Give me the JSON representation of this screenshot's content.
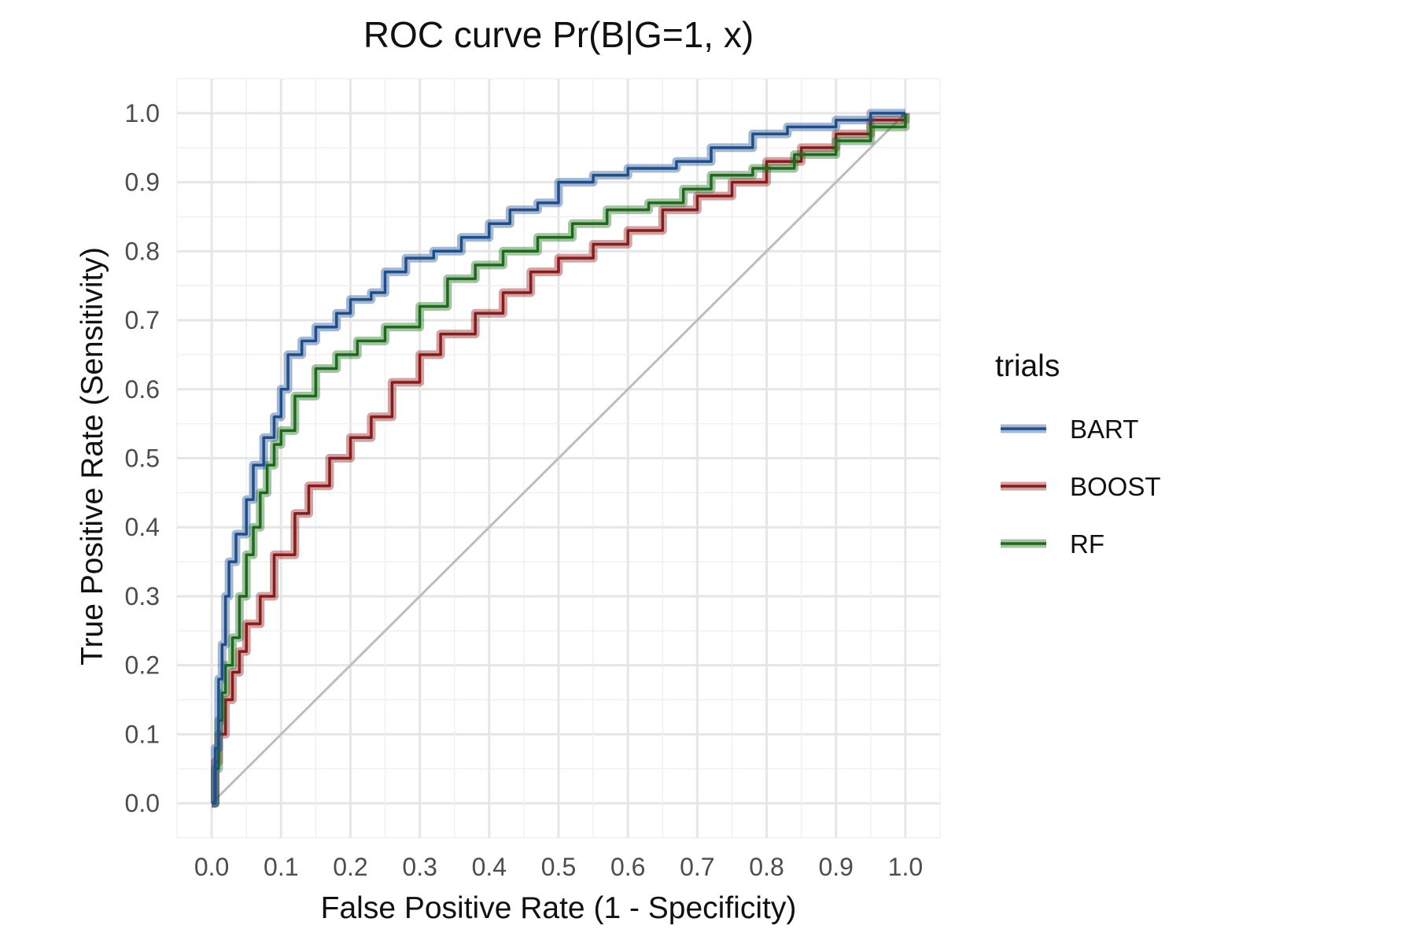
{
  "chart_data": {
    "type": "line",
    "title": "ROC curve Pr(B|G=1, x)",
    "xlabel": "False Positive Rate (1 - Specificity)",
    "ylabel": "True Positive Rate (Sensitivity)",
    "xlim": [
      -0.05,
      1.05
    ],
    "ylim": [
      -0.05,
      1.05
    ],
    "x_ticks": [
      "0.0",
      "0.1",
      "0.2",
      "0.3",
      "0.4",
      "0.5",
      "0.6",
      "0.7",
      "0.8",
      "0.9",
      "1.0"
    ],
    "y_ticks": [
      "0.0",
      "0.1",
      "0.2",
      "0.3",
      "0.4",
      "0.5",
      "0.6",
      "0.7",
      "0.8",
      "0.9",
      "1.0"
    ],
    "grid": true,
    "legend": {
      "title": "trials",
      "position": "right"
    },
    "reference_line": {
      "x": [
        0,
        1
      ],
      "y": [
        0,
        1
      ],
      "color": "#bdbdbd"
    },
    "series": [
      {
        "name": "BART",
        "color": "#1f4e8c",
        "points": [
          [
            0,
            0
          ],
          [
            0.005,
            0.08
          ],
          [
            0.01,
            0.18
          ],
          [
            0.015,
            0.23
          ],
          [
            0.02,
            0.3
          ],
          [
            0.025,
            0.35
          ],
          [
            0.035,
            0.39
          ],
          [
            0.05,
            0.44
          ],
          [
            0.06,
            0.49
          ],
          [
            0.075,
            0.53
          ],
          [
            0.09,
            0.56
          ],
          [
            0.1,
            0.6
          ],
          [
            0.11,
            0.65
          ],
          [
            0.13,
            0.67
          ],
          [
            0.15,
            0.69
          ],
          [
            0.18,
            0.71
          ],
          [
            0.2,
            0.73
          ],
          [
            0.23,
            0.74
          ],
          [
            0.25,
            0.77
          ],
          [
            0.28,
            0.79
          ],
          [
            0.32,
            0.8
          ],
          [
            0.36,
            0.82
          ],
          [
            0.4,
            0.84
          ],
          [
            0.43,
            0.86
          ],
          [
            0.47,
            0.87
          ],
          [
            0.5,
            0.9
          ],
          [
            0.55,
            0.91
          ],
          [
            0.6,
            0.92
          ],
          [
            0.67,
            0.93
          ],
          [
            0.72,
            0.95
          ],
          [
            0.78,
            0.97
          ],
          [
            0.83,
            0.98
          ],
          [
            0.9,
            0.99
          ],
          [
            0.95,
            1.0
          ],
          [
            1.0,
            1.0
          ]
        ]
      },
      {
        "name": "BOOST",
        "color": "#8b1a1a",
        "points": [
          [
            0,
            0
          ],
          [
            0.005,
            0.06
          ],
          [
            0.01,
            0.1
          ],
          [
            0.02,
            0.15
          ],
          [
            0.03,
            0.19
          ],
          [
            0.04,
            0.22
          ],
          [
            0.05,
            0.26
          ],
          [
            0.07,
            0.3
          ],
          [
            0.09,
            0.36
          ],
          [
            0.12,
            0.42
          ],
          [
            0.14,
            0.46
          ],
          [
            0.17,
            0.5
          ],
          [
            0.2,
            0.53
          ],
          [
            0.23,
            0.56
          ],
          [
            0.26,
            0.61
          ],
          [
            0.3,
            0.65
          ],
          [
            0.33,
            0.68
          ],
          [
            0.38,
            0.71
          ],
          [
            0.42,
            0.74
          ],
          [
            0.46,
            0.77
          ],
          [
            0.5,
            0.79
          ],
          [
            0.55,
            0.81
          ],
          [
            0.6,
            0.83
          ],
          [
            0.65,
            0.86
          ],
          [
            0.7,
            0.88
          ],
          [
            0.75,
            0.9
          ],
          [
            0.8,
            0.93
          ],
          [
            0.85,
            0.95
          ],
          [
            0.9,
            0.97
          ],
          [
            0.95,
            0.99
          ],
          [
            1.0,
            1.0
          ]
        ]
      },
      {
        "name": "RF",
        "color": "#1b6b1b",
        "points": [
          [
            0,
            0
          ],
          [
            0.005,
            0.05
          ],
          [
            0.01,
            0.12
          ],
          [
            0.015,
            0.16
          ],
          [
            0.02,
            0.2
          ],
          [
            0.03,
            0.24
          ],
          [
            0.04,
            0.3
          ],
          [
            0.05,
            0.36
          ],
          [
            0.06,
            0.4
          ],
          [
            0.07,
            0.45
          ],
          [
            0.08,
            0.49
          ],
          [
            0.09,
            0.52
          ],
          [
            0.1,
            0.54
          ],
          [
            0.12,
            0.59
          ],
          [
            0.15,
            0.63
          ],
          [
            0.18,
            0.65
          ],
          [
            0.21,
            0.67
          ],
          [
            0.25,
            0.69
          ],
          [
            0.3,
            0.72
          ],
          [
            0.34,
            0.76
          ],
          [
            0.38,
            0.78
          ],
          [
            0.42,
            0.8
          ],
          [
            0.47,
            0.82
          ],
          [
            0.52,
            0.84
          ],
          [
            0.57,
            0.86
          ],
          [
            0.63,
            0.87
          ],
          [
            0.68,
            0.89
          ],
          [
            0.72,
            0.91
          ],
          [
            0.78,
            0.92
          ],
          [
            0.84,
            0.94
          ],
          [
            0.9,
            0.96
          ],
          [
            0.95,
            0.98
          ],
          [
            1.0,
            1.0
          ]
        ]
      }
    ]
  }
}
